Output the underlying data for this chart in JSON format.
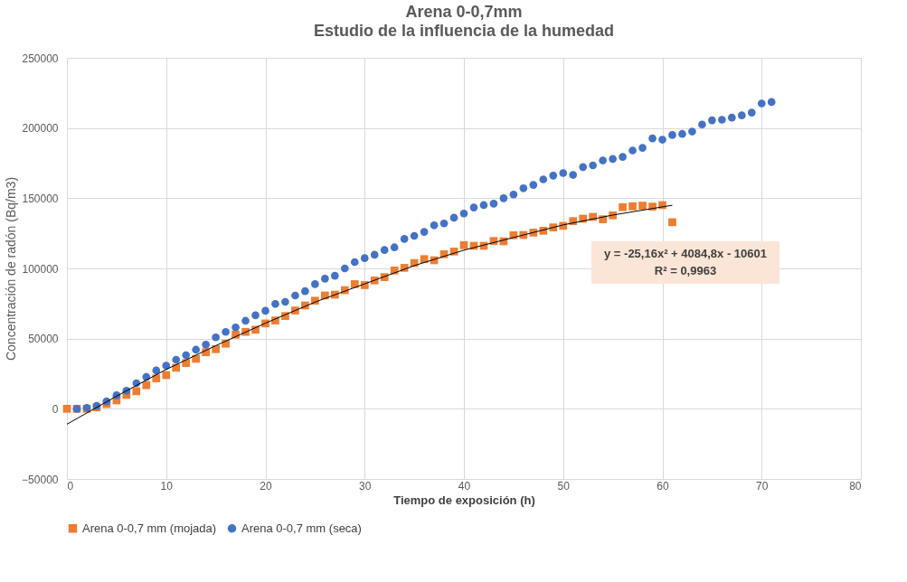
{
  "chart_data": {
    "type": "scatter",
    "title": "Arena 0-0,7mm",
    "subtitle": "Estudio de la influencia de la humedad",
    "xlabel": "Tiempo de exposición (h)",
    "ylabel": "Concentración de radón (Bq/m3)",
    "xlim": [
      0,
      80
    ],
    "xticks": [
      0,
      10,
      20,
      30,
      40,
      50,
      60,
      70,
      80
    ],
    "ylim": [
      -50000,
      250000
    ],
    "yticks": [
      -50000,
      0,
      50000,
      100000,
      150000,
      200000,
      250000
    ],
    "grid": true,
    "legend": "bottom",
    "annotations": [
      "y = -25,16x² + 4084,8x - 10601",
      "R² = 0,9963"
    ],
    "series": [
      {
        "name": "Arena 0-0,7 mm (mojada)",
        "color": "#ed7d31",
        "marker": "square",
        "x": [
          0,
          1,
          2,
          3,
          4,
          5,
          6,
          7,
          8,
          9,
          10,
          11,
          12,
          13,
          14,
          15,
          16,
          17,
          18,
          19,
          20,
          21,
          22,
          23,
          24,
          25,
          26,
          27,
          28,
          29,
          30,
          31,
          32,
          33,
          34,
          35,
          36,
          37,
          38,
          39,
          40,
          41,
          42,
          43,
          44,
          45,
          46,
          47,
          48,
          49,
          50,
          51,
          52,
          53,
          54,
          55,
          56,
          57,
          58,
          59,
          60,
          61
        ],
        "values": [
          0,
          0,
          0,
          1000,
          3400,
          6000,
          9900,
          12500,
          16800,
          21700,
          24000,
          29200,
          32600,
          35600,
          40300,
          42500,
          46400,
          52800,
          54800,
          56300,
          60800,
          62900,
          66100,
          70000,
          73600,
          77000,
          80700,
          81300,
          84500,
          88800,
          88100,
          91400,
          93800,
          98500,
          100400,
          103800,
          106600,
          105800,
          110100,
          112000,
          116500,
          116100,
          116100,
          119500,
          119300,
          123600,
          123800,
          125500,
          126800,
          129200,
          130300,
          133700,
          135400,
          136700,
          135000,
          137800,
          143600,
          144200,
          144700,
          144000,
          145100,
          132900
        ]
      },
      {
        "name": "Arena 0-0,7 mm (seca)",
        "color": "#4472c4",
        "marker": "circle",
        "x": [
          1,
          2,
          3,
          4,
          5,
          6,
          7,
          8,
          9,
          10,
          11,
          12,
          13,
          14,
          15,
          16,
          17,
          18,
          19,
          20,
          21,
          22,
          23,
          24,
          25,
          26,
          27,
          28,
          29,
          30,
          31,
          32,
          33,
          34,
          35,
          36,
          37,
          38,
          39,
          40,
          41,
          42,
          43,
          44,
          45,
          46,
          47,
          48,
          49,
          50,
          51,
          52,
          53,
          54,
          55,
          56,
          57,
          58,
          59,
          60,
          61,
          62,
          63,
          64,
          65,
          66,
          67,
          68,
          69,
          70,
          71
        ],
        "values": [
          0,
          700,
          2100,
          5300,
          9600,
          12900,
          18200,
          22700,
          27300,
          30700,
          35000,
          38200,
          42100,
          45700,
          50900,
          54800,
          58000,
          62700,
          66600,
          69800,
          74700,
          76200,
          80700,
          83800,
          88800,
          92700,
          94800,
          100000,
          104500,
          107300,
          109700,
          113100,
          115000,
          121000,
          123200,
          126000,
          130700,
          132000,
          136100,
          139100,
          143400,
          145100,
          146100,
          150000,
          152600,
          157100,
          159500,
          163400,
          166100,
          167900,
          166600,
          172200,
          173400,
          176900,
          178000,
          179400,
          184000,
          185900,
          192600,
          191700,
          195000,
          195800,
          197500,
          202500,
          205500,
          205900,
          207400,
          209000,
          211000,
          217500,
          218500
        ]
      },
      {
        "type": "line",
        "color": "#000000",
        "marker": "none",
        "x": [
          0,
          5,
          10,
          15,
          20,
          25,
          30,
          35,
          40,
          45,
          50,
          55,
          61
        ],
        "values": [
          -11000,
          9000,
          28000,
          45000,
          61000,
          76000,
          89000,
          102000,
          113000,
          122000,
          131000,
          138000,
          145000
        ]
      }
    ]
  }
}
